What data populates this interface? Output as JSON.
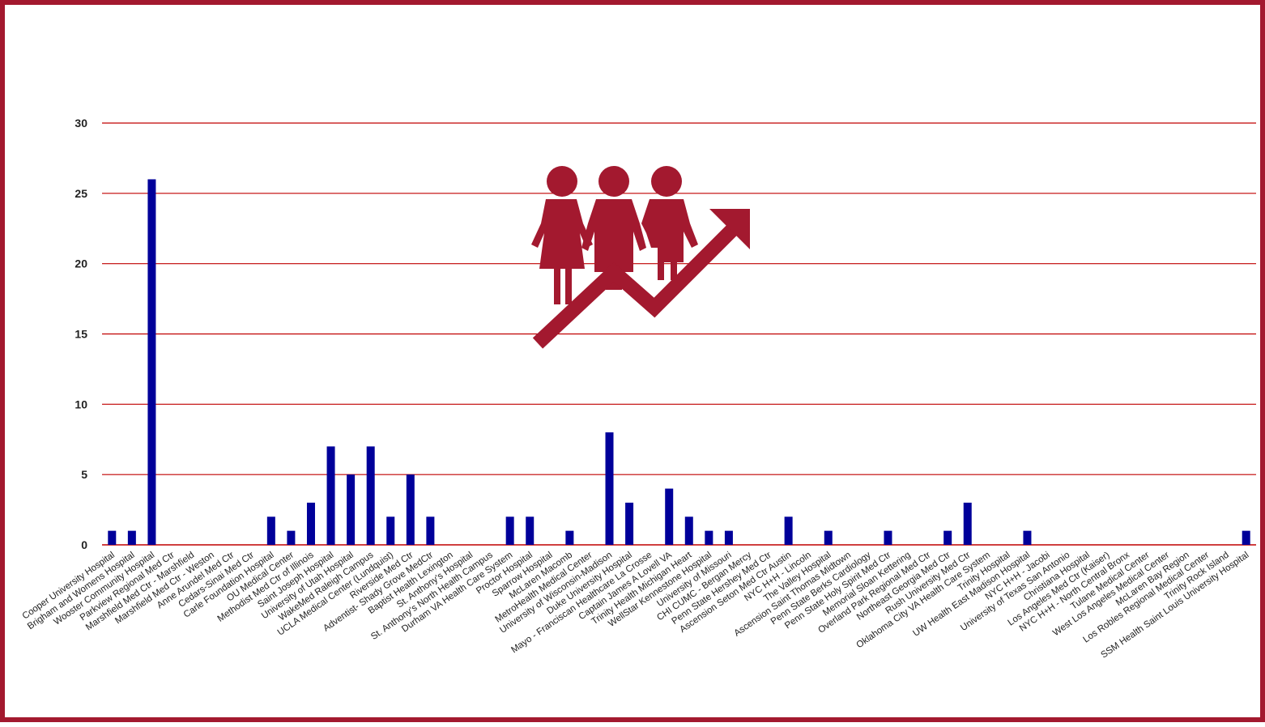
{
  "chart_data": {
    "type": "bar",
    "title": "",
    "xlabel": "",
    "ylabel": "",
    "ylim": [
      0,
      30
    ],
    "yticks": [
      0,
      5,
      10,
      15,
      20,
      25,
      30
    ],
    "grid": true,
    "bar_color": "#00009a",
    "grid_color": "#c00000",
    "categories": [
      "Cooper University Hospital",
      "Brigham and Womens Hospital",
      "Wooster Community Hospital",
      "Parkview Regional Med Ctr",
      "Marshfield Med Ctr - Marshfield",
      "Marshfield Med Ctr - Weston",
      "Anne Arundel Med Ctr",
      "Cedars-Sinai Med Ctr",
      "Carle Foundation Hospital",
      "OU Medical Center",
      "Methodist Med Ctr of Illinois",
      "Saint Joseph Hospital",
      "University of Utah Hospital",
      "WakeMed Raleigh Campus",
      "UCLA Medical Center (Lundquist)",
      "Riverside Med Ctr",
      "Adventist- Shady Grove MedCtr",
      "Baptist Health Lexington",
      "St. Anthony's Hospital",
      "St. Anthony's North Health Campus",
      "Durham VA Health Care System",
      "Proctor Hospital",
      "Sparrow Hospital",
      "McLaren Macomb",
      "MetroHealth Medical Center",
      "University of Wisconsin-Madison",
      "Duke University Hospital",
      "Mayo - Franciscan Healthcare La Crosse",
      "Captain James A Lovell VA",
      "Trinity Health Michigan Heart",
      "WellStar Kennestone Hospital",
      "University of Missouri",
      "CHI CUMC - Bergan Mercy",
      "Penn State Hershey Med Ctr",
      "Ascension Seton Med Ctr Austin",
      "NYC H+H - Lincoln",
      "The Valley Hospital",
      "Ascension Saint Thomas Midtown",
      "Penn State Berks Cardiology",
      "Penn State Holy Spirit Med Ctr",
      "Memorial Sloan Kettering",
      "Overland Park Regional Med Ctr",
      "Northeast Georgia Med Ctr",
      "Rush University Med Ctr",
      "Oklahoma City VA Health Care System",
      "Trinity Hospital",
      "UW Health East Madison Hospital",
      "NYC H+H - Jacobi",
      "University of Texas San Antonio",
      "Christiana Hospital",
      "Los Angeles Med Ctr (Kaiser)",
      "NYC H+H - North Central Bronx",
      "Tulane Medical Center",
      "West Los Angeles Medical Center",
      "McLaren Bay Region",
      "Los Robles Regional Medical Center",
      "Trinity Rock Island",
      "SSM Health Saint Louis University Hospital"
    ],
    "values": [
      1,
      1,
      26,
      0,
      0,
      0,
      0,
      0,
      2,
      1,
      3,
      7,
      5,
      7,
      2,
      5,
      2,
      0,
      0,
      0,
      2,
      2,
      0,
      1,
      0,
      8,
      3,
      0,
      4,
      2,
      1,
      1,
      0,
      0,
      2,
      0,
      1,
      0,
      0,
      1,
      0,
      0,
      1,
      3,
      0,
      0,
      1,
      0,
      0,
      0,
      0,
      0,
      0,
      0,
      0,
      0,
      0,
      1
    ]
  },
  "decoration": {
    "icon_name": "people-growth-icon",
    "icon_color": "#a3192f",
    "frame_color": "#a3192f"
  }
}
